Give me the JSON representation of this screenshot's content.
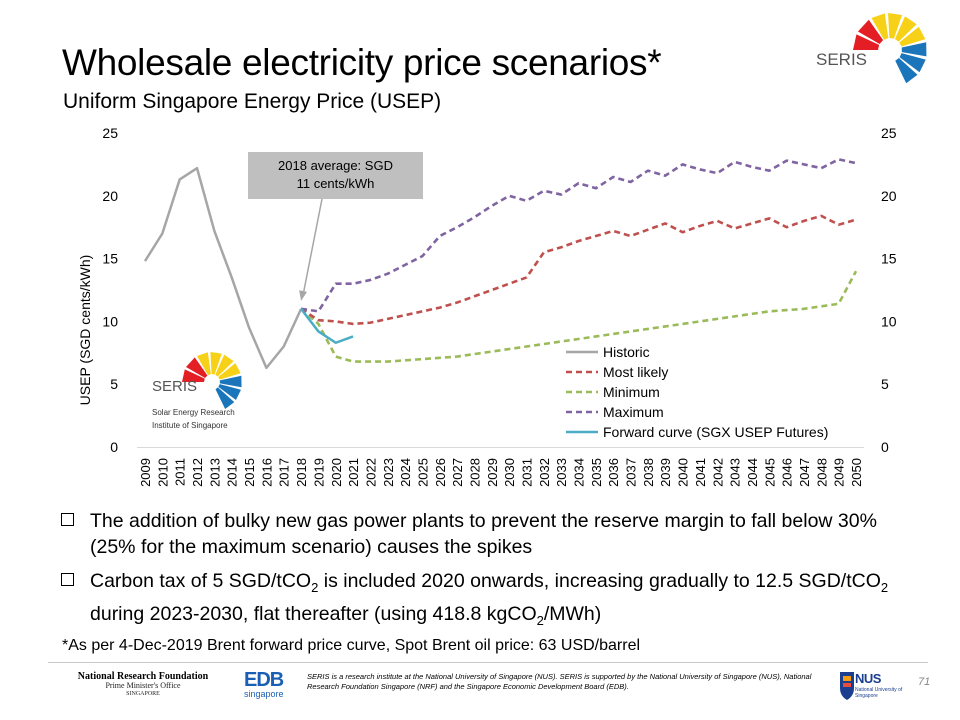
{
  "slide": {
    "title": "Wholesale electricity price scenarios*",
    "subtitle": "Uniform Singapore Energy Price (USEP)",
    "brand_logo_text": "SERIS",
    "watermark": {
      "name": "SERIS",
      "line1": "Solar Energy Research",
      "line2": "Institute of Singapore"
    },
    "bullets": [
      {
        "parts": [
          {
            "t": "The addition of bulky new gas power plants to prevent the reserve margin to fall below 30% (25% for the maximum scenario) causes the spikes"
          }
        ]
      },
      {
        "parts": [
          {
            "t": "Carbon tax of 5 SGD/tCO"
          },
          {
            "t": "2",
            "sub": true
          },
          {
            "t": " is included 2020 onwards, increasing gradually to 12.5 SGD/tCO"
          },
          {
            "t": "2",
            "sub": true
          },
          {
            "t": " during 2023-2030,  flat thereafter (using 418.8 kgCO"
          },
          {
            "t": "2",
            "sub": true
          },
          {
            "t": "/MWh)"
          }
        ]
      }
    ],
    "footnote": "*As per 4-Dec-2019 Brent forward price curve, Spot Brent oil price: 63 USD/barrel",
    "footer": {
      "nrf_line1": "National Research Foundation",
      "nrf_line2": "Prime Minister's Office",
      "nrf_line3": "SINGAPORE",
      "edb_line1": "EDB",
      "edb_line2": "singapore",
      "text": "SERIS is a research institute at the National University of Singapore (NUS). SERIS is supported by the National University of Singapore (NUS), National Research Foundation Singapore (NRF) and the Singapore Economic Development Board (EDB).",
      "nus_word": "NUS",
      "nus_sub": "National University of Singapore",
      "page_number": "71"
    }
  },
  "colors": {
    "historic": "#a6a6a6",
    "most_likely": "#c0504d",
    "minimum": "#9bbb59",
    "maximum": "#8064a2",
    "forward": "#4bacc6",
    "seris_red": "#e31e24",
    "seris_yellow": "#f7d117",
    "seris_blue": "#1b75bb",
    "annotation_box": "#bfbfbf"
  },
  "chart_data": {
    "type": "line",
    "ylabel": "USEP (SGD cents/kWh)",
    "ylim": [
      0,
      25
    ],
    "yticks": [
      0,
      5,
      10,
      15,
      20,
      25
    ],
    "right_axis_ticks": [
      0,
      5,
      10,
      15,
      20,
      25
    ],
    "categories": [
      "2009",
      "2010",
      "2011",
      "2012",
      "2013",
      "2014",
      "2015",
      "2016",
      "2017",
      "2018",
      "2019",
      "2020",
      "2021",
      "2022",
      "2023",
      "2024",
      "2025",
      "2026",
      "2027",
      "2028",
      "2029",
      "2030",
      "2031",
      "2032",
      "2033",
      "2034",
      "2035",
      "2036",
      "2037",
      "2038",
      "2039",
      "2040",
      "2041",
      "2042",
      "2043",
      "2044",
      "2045",
      "2046",
      "2047",
      "2048",
      "2049",
      "2050"
    ],
    "annotation": {
      "line1": "2018 average: SGD",
      "line2": "11 cents/kWh",
      "points_to": "2018"
    },
    "legend_position": "bottom-right",
    "series": [
      {
        "name": "Historic",
        "key": "historic",
        "dash": "solid",
        "x": [
          2009,
          2010,
          2011,
          2012,
          2013,
          2014,
          2015,
          2016,
          2017,
          2018
        ],
        "y": [
          14.8,
          17.0,
          21.3,
          22.2,
          17.2,
          13.5,
          9.5,
          6.3,
          8.0,
          11.0
        ]
      },
      {
        "name": "Most likely",
        "key": "most_likely",
        "dash": "dashed",
        "x": [
          2018,
          2019,
          2020,
          2021,
          2022,
          2023,
          2024,
          2025,
          2026,
          2027,
          2028,
          2029,
          2030,
          2031,
          2032,
          2033,
          2034,
          2035,
          2036,
          2037,
          2038,
          2039,
          2040,
          2041,
          2042,
          2043,
          2044,
          2045,
          2046,
          2047,
          2048,
          2049,
          2050
        ],
        "y": [
          11.0,
          10.1,
          10.0,
          9.8,
          9.9,
          10.2,
          10.5,
          10.8,
          11.1,
          11.5,
          12.0,
          12.5,
          13.0,
          13.5,
          15.5,
          15.9,
          16.4,
          16.8,
          17.2,
          16.8,
          17.3,
          17.8,
          17.1,
          17.6,
          18.0,
          17.4,
          17.8,
          18.2,
          17.5,
          18.0,
          18.4,
          17.7,
          18.1
        ]
      },
      {
        "name": "Minimum",
        "key": "minimum",
        "dash": "dashed",
        "x": [
          2018,
          2019,
          2020,
          2021,
          2022,
          2023,
          2024,
          2025,
          2026,
          2027,
          2028,
          2029,
          2030,
          2031,
          2032,
          2033,
          2034,
          2035,
          2036,
          2037,
          2038,
          2039,
          2040,
          2041,
          2042,
          2043,
          2044,
          2045,
          2046,
          2047,
          2048,
          2049,
          2050
        ],
        "y": [
          11.0,
          9.8,
          7.2,
          6.8,
          6.8,
          6.8,
          6.9,
          7.0,
          7.1,
          7.2,
          7.4,
          7.6,
          7.8,
          8.0,
          8.2,
          8.4,
          8.6,
          8.8,
          9.0,
          9.2,
          9.4,
          9.6,
          9.8,
          10.0,
          10.2,
          10.4,
          10.6,
          10.8,
          10.9,
          11.0,
          11.2,
          11.4,
          14.0
        ]
      },
      {
        "name": "Maximum",
        "key": "maximum",
        "dash": "dashed",
        "x": [
          2018,
          2019,
          2020,
          2021,
          2022,
          2023,
          2024,
          2025,
          2026,
          2027,
          2028,
          2029,
          2030,
          2031,
          2032,
          2033,
          2034,
          2035,
          2036,
          2037,
          2038,
          2039,
          2040,
          2041,
          2042,
          2043,
          2044,
          2045,
          2046,
          2047,
          2048,
          2049,
          2050
        ],
        "y": [
          11.0,
          10.8,
          13.0,
          13.0,
          13.3,
          13.8,
          14.5,
          15.2,
          16.8,
          17.5,
          18.3,
          19.2,
          20.0,
          19.6,
          20.4,
          20.1,
          21.0,
          20.6,
          21.5,
          21.1,
          22.0,
          21.6,
          22.5,
          22.1,
          21.8,
          22.7,
          22.3,
          22.0,
          22.8,
          22.5,
          22.2,
          22.9,
          22.6
        ]
      },
      {
        "name": "Forward curve (SGX USEP Futures)",
        "key": "forward",
        "dash": "solid",
        "x": [
          2018,
          2019,
          2020,
          2021
        ],
        "y": [
          11.0,
          9.2,
          8.3,
          8.8
        ]
      }
    ]
  }
}
